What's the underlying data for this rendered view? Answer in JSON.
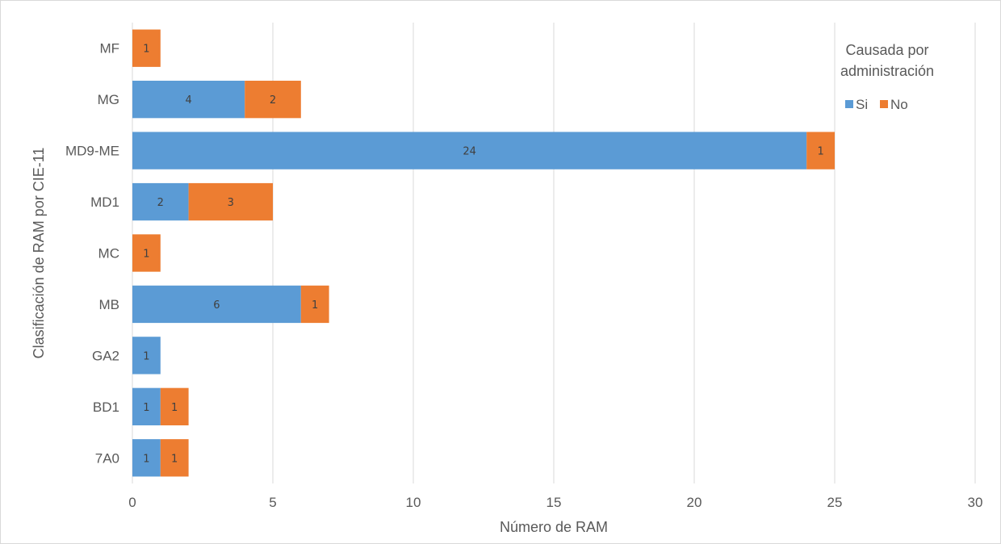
{
  "chart_data": {
    "type": "bar",
    "orientation": "horizontal",
    "stacked": true,
    "categories": [
      "MF",
      "MG",
      "MD9-ME",
      "MD1",
      "MC",
      "MB",
      "GA2",
      "BD1",
      "7A0"
    ],
    "series": [
      {
        "name": "Si",
        "color": "#5b9bd5",
        "values": [
          0,
          4,
          24,
          2,
          0,
          6,
          1,
          1,
          1
        ]
      },
      {
        "name": "No",
        "color": "#ed7d31",
        "values": [
          1,
          2,
          1,
          3,
          1,
          1,
          0,
          1,
          1
        ]
      }
    ],
    "xlabel": "Número de RAM",
    "ylabel": "Clasificación de RAM por CIE-11",
    "xlim": [
      0,
      30
    ],
    "xticks": [
      "0",
      "5",
      "10",
      "15",
      "20",
      "25",
      "30"
    ],
    "grid": "vertical",
    "data_labels": true,
    "legend": {
      "title_lines": [
        "Causada por",
        "administración"
      ],
      "placement": "top-right"
    }
  }
}
